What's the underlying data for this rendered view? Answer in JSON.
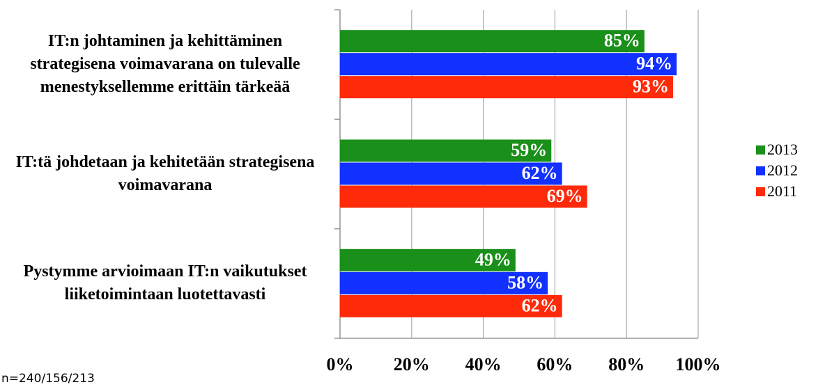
{
  "chart_data": {
    "type": "barh",
    "categories": [
      "IT:n johtaminen ja kehittäminen strategisena voimavarana on tulevalle menestyksellemme erittäin tärkeää",
      "IT:tä johdetaan ja kehitetään strategisena voimavarana",
      "Pystymme arvioimaan IT:n vaikutukset liiketoimintaan luotettavasti"
    ],
    "series": [
      {
        "name": "2013",
        "color": "#1a8f1a",
        "values": [
          85,
          59,
          49
        ],
        "value_labels": [
          "85%",
          "59%",
          "49%"
        ]
      },
      {
        "name": "2012",
        "color": "#1230ff",
        "values": [
          94,
          62,
          58
        ],
        "value_labels": [
          "94%",
          "62%",
          "58%"
        ]
      },
      {
        "name": "2011",
        "color": "#ff2a0a",
        "values": [
          93,
          69,
          62
        ],
        "value_labels": [
          "93%",
          "69%",
          "62%"
        ]
      }
    ],
    "xlim": [
      0,
      100
    ],
    "xticks": [
      {
        "value": 0,
        "label": "0%"
      },
      {
        "value": 20,
        "label": "20%"
      },
      {
        "value": 40,
        "label": "40%"
      },
      {
        "value": 60,
        "label": "60%"
      },
      {
        "value": 80,
        "label": "80%"
      },
      {
        "value": 100,
        "label": "100%"
      }
    ],
    "grid": true,
    "legend": "right",
    "note": "n=240/156/213"
  }
}
